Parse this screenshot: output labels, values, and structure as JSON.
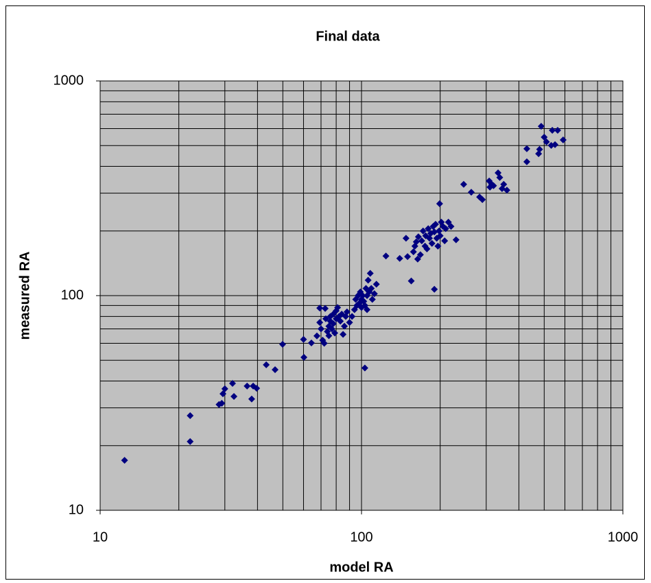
{
  "chart_data": {
    "type": "scatter",
    "title": "Final data",
    "x_label": "model RA",
    "y_label": "measured RA",
    "x_log": true,
    "y_log": true,
    "grid": true,
    "plot_background": "#c0c0c0",
    "xlim": [
      10,
      1000
    ],
    "ylim": [
      10,
      1000
    ],
    "xticks": [
      10,
      100,
      1000
    ],
    "yticks": [
      10,
      100,
      1000
    ],
    "xminor_ticks": [
      20,
      30,
      40,
      50,
      60,
      70,
      80,
      90,
      200,
      300,
      400,
      500,
      600,
      700,
      800,
      900
    ],
    "yminor_ticks": [
      20,
      30,
      40,
      50,
      60,
      70,
      80,
      90,
      200,
      300,
      400,
      500,
      600,
      700,
      800,
      900
    ],
    "series": [
      {
        "color": "#000080",
        "x": [
          12.4,
          22.1,
          22.1,
          28.5,
          29.2,
          29.5,
          30.0,
          32.1,
          32.5,
          36.5,
          38.0,
          38.5,
          39.7,
          43.2,
          46.7,
          49.9,
          60,
          60.2,
          64.3,
          67.5,
          69.2,
          69.2,
          72.6,
          70,
          71,
          72,
          73,
          74,
          75,
          75,
          76,
          76,
          77,
          78,
          78,
          79,
          80,
          80,
          81,
          82,
          83,
          84,
          85,
          86,
          87,
          88,
          90,
          92,
          94,
          95,
          96,
          97,
          98,
          99,
          100,
          100,
          101,
          102,
          103,
          103,
          104,
          105,
          105,
          106,
          107,
          108,
          109,
          110,
          112,
          114,
          124,
          140,
          148,
          150,
          155,
          158,
          160,
          162,
          164,
          165,
          168,
          170,
          172,
          175,
          176,
          178,
          180,
          182,
          184,
          186,
          188,
          190,
          190,
          192,
          194,
          196,
          198,
          199,
          200,
          202,
          205,
          208,
          210,
          215,
          220,
          230,
          246,
          263,
          283,
          290,
          308,
          310,
          315,
          320,
          333,
          338,
          345,
          350,
          360,
          429,
          429,
          476,
          480,
          487,
          500,
          510,
          532,
          537,
          550,
          563,
          591
        ],
        "values": [
          17.1,
          27.6,
          20.9,
          31.1,
          31.5,
          34.9,
          36.8,
          39.0,
          33.9,
          37.9,
          33.0,
          37.9,
          37.0,
          47.6,
          45.2,
          59.3,
          62.5,
          51.6,
          60.2,
          64.9,
          75,
          87.5,
          87.1,
          70,
          62,
          60,
          78,
          68,
          65,
          72,
          80,
          76,
          70,
          74,
          82,
          67,
          78,
          85,
          88,
          80,
          76,
          82,
          66,
          72,
          80,
          84,
          75,
          80,
          86,
          96,
          90,
          100,
          92,
          104,
          88,
          96,
          100,
          94,
          90,
          46,
          108,
          100,
          86,
          118,
          104,
          127,
          108,
          96,
          102,
          113,
          153,
          149,
          185,
          152,
          117,
          160,
          170,
          178,
          148,
          188,
          155,
          180,
          200,
          170,
          190,
          165,
          205,
          185,
          195,
          175,
          210,
          107,
          198,
          215,
          185,
          170,
          200,
          268,
          190,
          220,
          210,
          180,
          205,
          220,
          210,
          182,
          330,
          303,
          288,
          280,
          342,
          320,
          330,
          325,
          373,
          355,
          315,
          330,
          310,
          483,
          420,
          458,
          480,
          615,
          547,
          520,
          501,
          589,
          505,
          589,
          531
        ]
      }
    ]
  }
}
